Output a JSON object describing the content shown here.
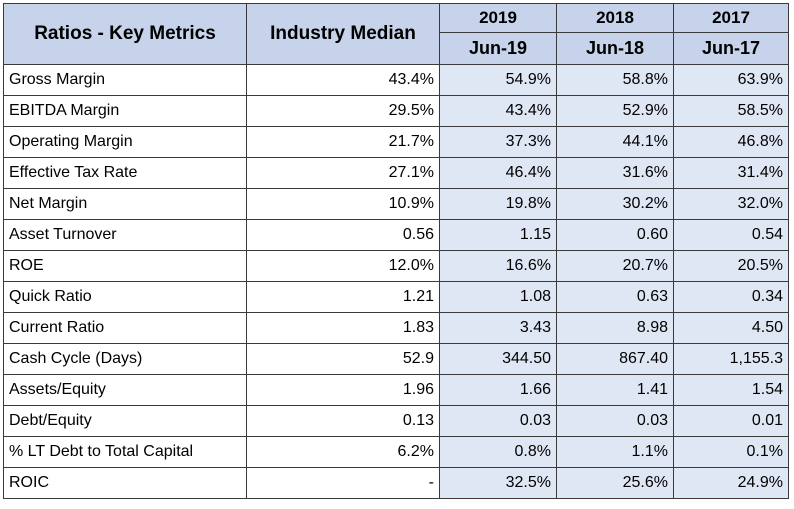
{
  "header": {
    "metrics_title": "Ratios - Key Metrics",
    "median_title": "Industry Median",
    "years": [
      "2019",
      "2018",
      "2017"
    ],
    "periods": [
      "Jun-19",
      "Jun-18",
      "Jun-17"
    ]
  },
  "rows": [
    {
      "label": "Gross Margin",
      "median": "43.4%",
      "y2019": "54.9%",
      "y2018": "58.8%",
      "y2017": "63.9%"
    },
    {
      "label": "EBITDA Margin",
      "median": "29.5%",
      "y2019": "43.4%",
      "y2018": "52.9%",
      "y2017": "58.5%"
    },
    {
      "label": "Operating Margin",
      "median": "21.7%",
      "y2019": "37.3%",
      "y2018": "44.1%",
      "y2017": "46.8%"
    },
    {
      "label": "Effective Tax Rate",
      "median": "27.1%",
      "y2019": "46.4%",
      "y2018": "31.6%",
      "y2017": "31.4%"
    },
    {
      "label": "Net Margin",
      "median": "10.9%",
      "y2019": "19.8%",
      "y2018": "30.2%",
      "y2017": "32.0%"
    },
    {
      "label": "Asset Turnover",
      "median": "0.56",
      "y2019": "1.15",
      "y2018": "0.60",
      "y2017": "0.54"
    },
    {
      "label": "ROE",
      "median": "12.0%",
      "y2019": "16.6%",
      "y2018": "20.7%",
      "y2017": "20.5%"
    },
    {
      "label": "Quick Ratio",
      "median": "1.21",
      "y2019": "1.08",
      "y2018": "0.63",
      "y2017": "0.34"
    },
    {
      "label": "Current Ratio",
      "median": "1.83",
      "y2019": "3.43",
      "y2018": "8.98",
      "y2017": "4.50"
    },
    {
      "label": "Cash Cycle (Days)",
      "median": "52.9",
      "y2019": "344.50",
      "y2018": "867.40",
      "y2017": "1,155.3"
    },
    {
      "label": "Assets/Equity",
      "median": "1.96",
      "y2019": "1.66",
      "y2018": "1.41",
      "y2017": "1.54"
    },
    {
      "label": "Debt/Equity",
      "median": "0.13",
      "y2019": "0.03",
      "y2018": "0.03",
      "y2017": "0.01"
    },
    {
      "label": "% LT Debt to Total Capital",
      "median": "6.2%",
      "y2019": "0.8%",
      "y2018": "1.1%",
      "y2017": "0.1%"
    },
    {
      "label": "ROIC",
      "median": "-",
      "y2019": "32.5%",
      "y2018": "25.6%",
      "y2017": "24.9%"
    }
  ],
  "colors": {
    "header_bg": "#c6d3ea",
    "year_cell_bg": "#dfe6f4",
    "border": "#3a3a3a"
  }
}
